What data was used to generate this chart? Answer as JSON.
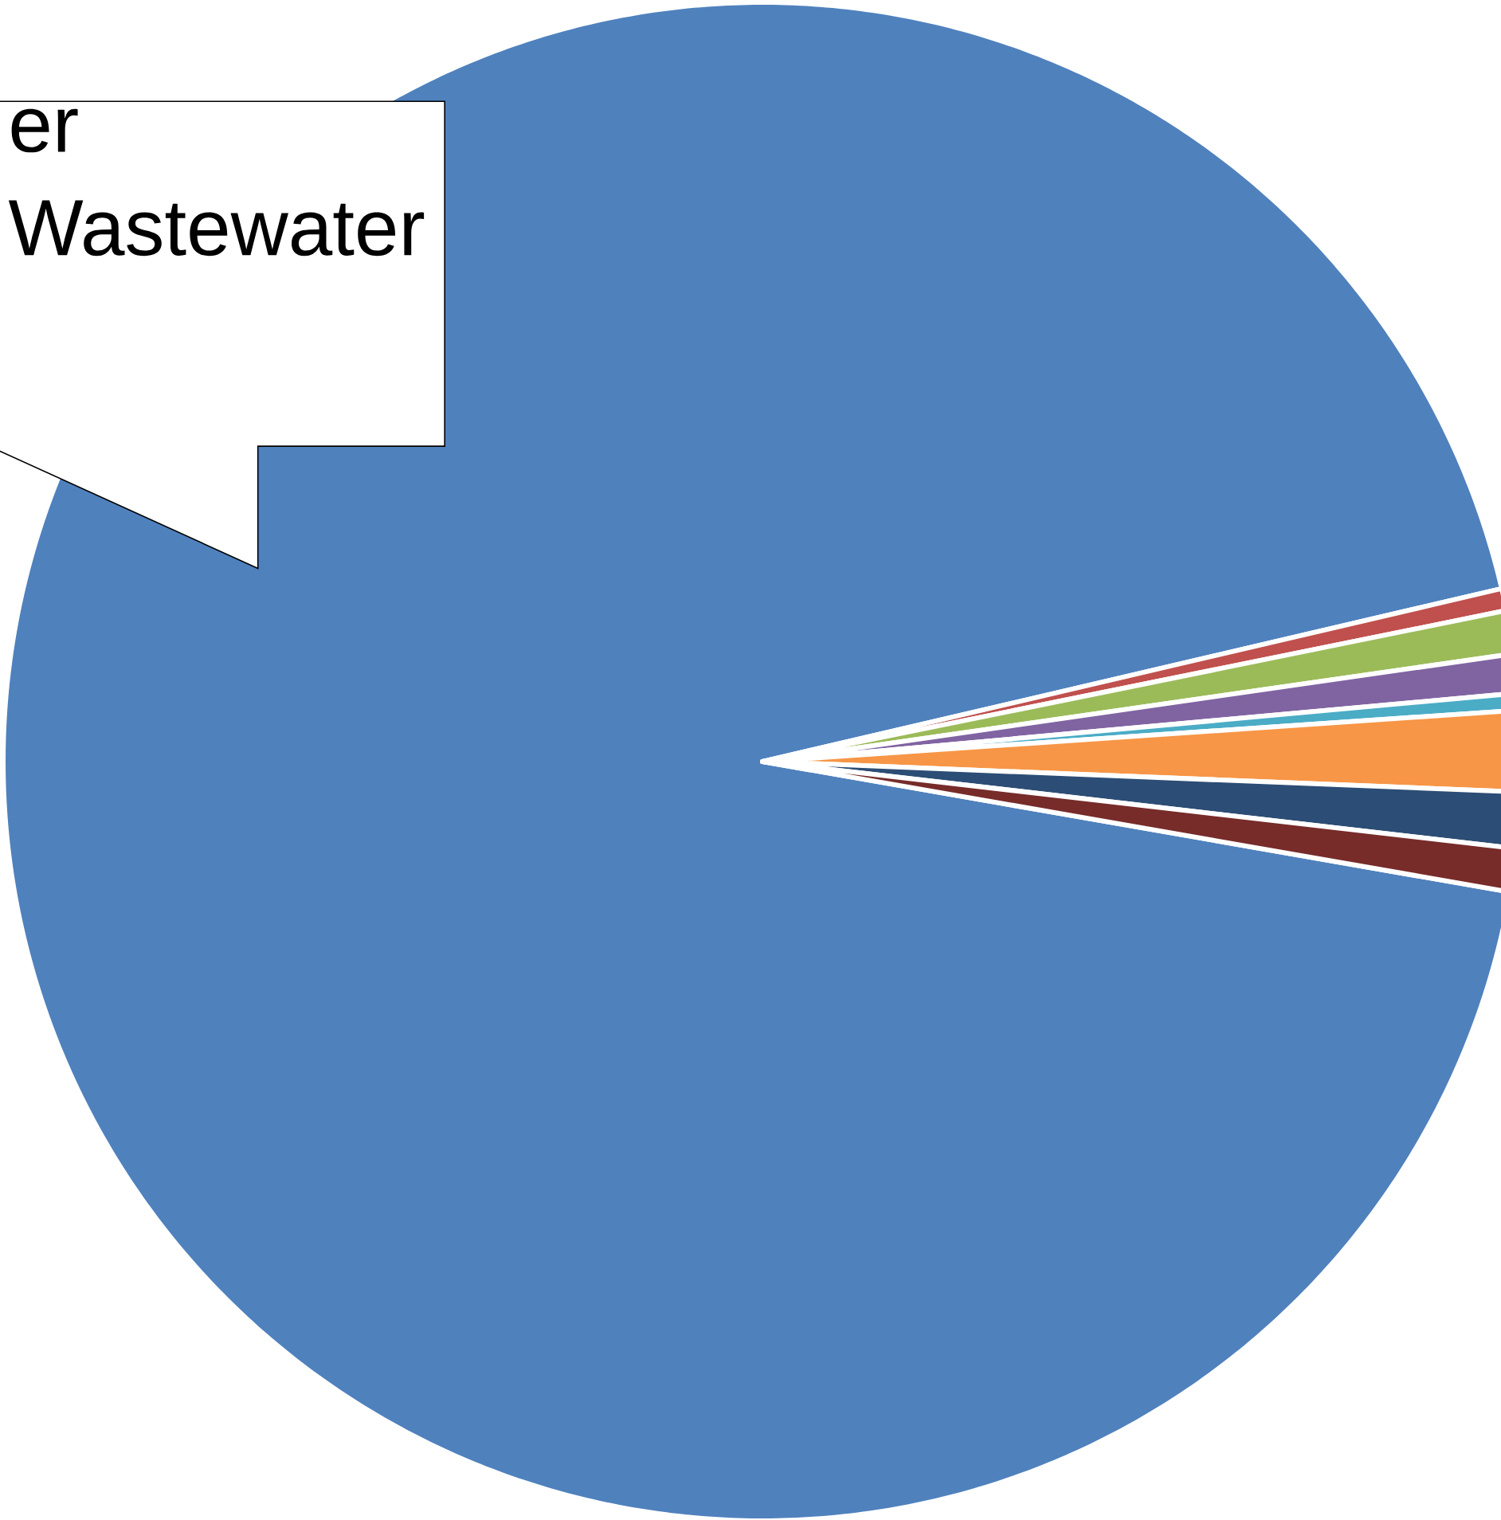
{
  "chart_data": {
    "type": "pie",
    "categories": [
      "er Wastewater",
      null,
      null,
      null,
      null,
      null,
      null,
      null
    ],
    "values": [
      93.59,
      0.47,
      0.92,
      0.83,
      0.36,
      1.72,
      1.19,
      0.92
    ],
    "colors": [
      "#4f81bd",
      "#c0504d",
      "#9bbb59",
      "#8064a2",
      "#4bacc6",
      "#f79646",
      "#2c4d75",
      "#772c2a"
    ]
  }
}
